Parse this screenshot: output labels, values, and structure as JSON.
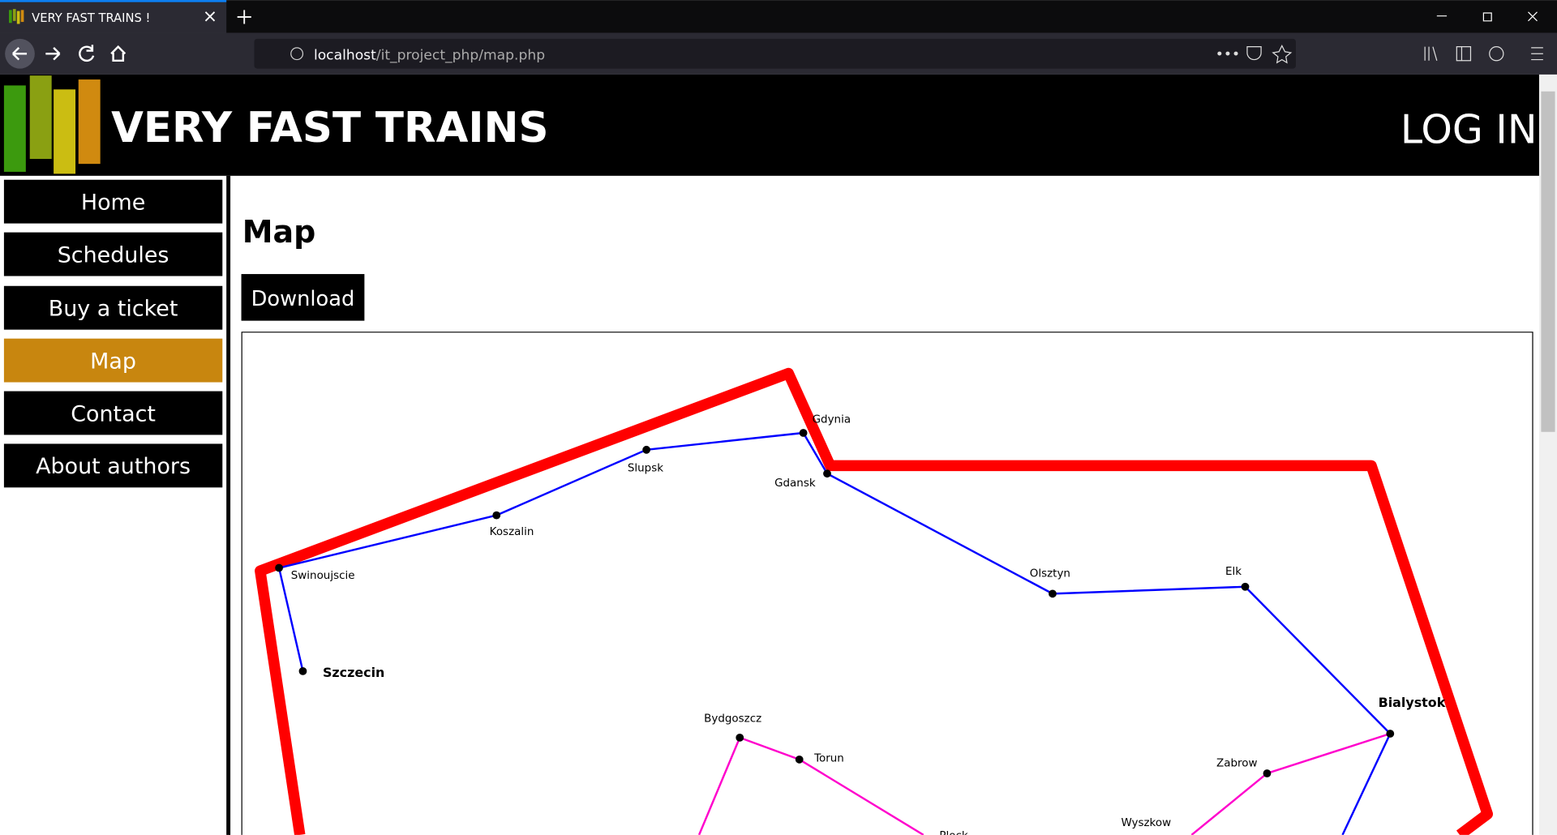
{
  "browser": {
    "tab_title": "VERY FAST TRAINS !",
    "url_host": "localhost",
    "url_path": "/it_project_php/map.php"
  },
  "header": {
    "title": "VERY FAST TRAINS",
    "login": "LOG IN"
  },
  "nav": [
    "Home",
    "Schedules",
    "Buy a ticket",
    "Map",
    "Contact",
    "About authors"
  ],
  "main": {
    "heading": "Map",
    "download": "Download"
  },
  "map": {
    "cities": [
      "Gdynia",
      "Slupsk",
      "Gdansk",
      "Koszalin",
      "Swinoujscie",
      "Olsztyn",
      "Elk",
      "Szczecin",
      "Bialystok",
      "Bydgoszcz",
      "Torun",
      "Zabrow",
      "Wyszkow",
      "Plock"
    ]
  }
}
